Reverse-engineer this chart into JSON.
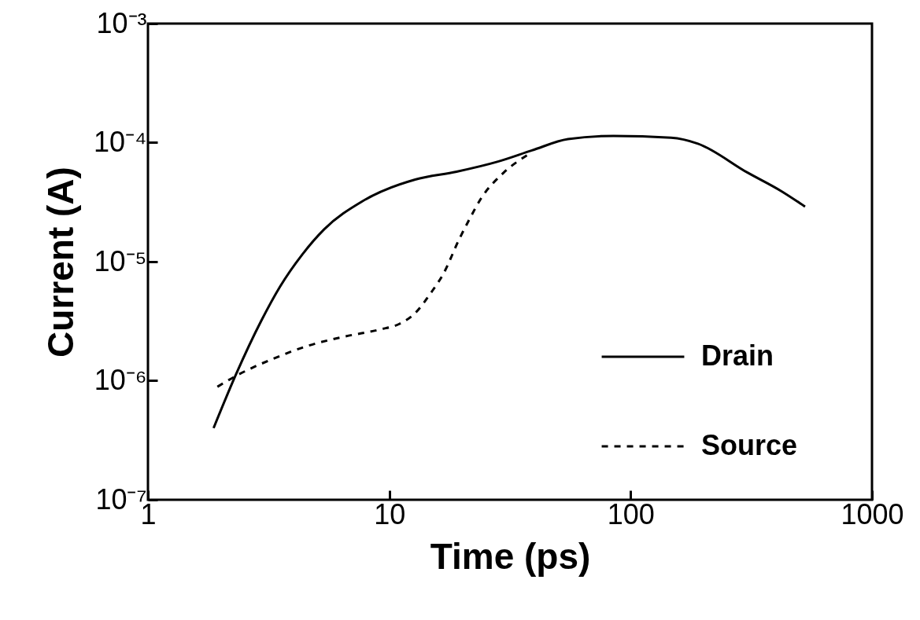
{
  "chart_data": {
    "type": "line",
    "xlabel": "Time (ps)",
    "ylabel": "Current (A)",
    "log": "xy",
    "grid": false,
    "legend": "bottom right",
    "marker": "none",
    "xlim": [
      1,
      1000
    ],
    "xticks": [
      1,
      10,
      100,
      1000
    ],
    "ylim": [
      1e-07,
      0.001
    ],
    "yticks": [
      {
        "value": 1e-07,
        "label": "10⁻⁷"
      },
      {
        "value": 1e-06,
        "label": "10⁻⁶"
      },
      {
        "value": 1e-05,
        "label": "10⁻⁵"
      },
      {
        "value": 0.0001,
        "label": "10⁻⁴"
      },
      {
        "value": 0.001,
        "label": "10⁻³"
      }
    ],
    "series": [
      {
        "name": "Drain",
        "color": "#000000",
        "line_style": "solid",
        "x": [
          1.87,
          2.32,
          2.95,
          3.53,
          4.36,
          5.37,
          7.7,
          12.8,
          19,
          28,
          39,
          55,
          85,
          147,
          190,
          305,
          422,
          528
        ],
        "values": [
          4e-07,
          1.14e-06,
          3.2e-06,
          6.2e-06,
          1.15e-05,
          1.87e-05,
          3.2e-05,
          4.9e-05,
          5.7e-05,
          6.9e-05,
          8.6e-05,
          0.000107,
          0.000114,
          0.00011,
          9.8e-05,
          5.6e-05,
          3.9e-05,
          2.9e-05
        ]
      },
      {
        "name": "Source",
        "color": "#000000",
        "line_style": "dashed",
        "x": [
          1.94,
          2.32,
          3.33,
          4.62,
          6.6,
          9.2,
          11,
          12.8,
          14.9,
          16.8,
          19.5,
          21.4,
          24,
          29.8,
          37.9
        ],
        "values": [
          8.9e-07,
          1.1e-06,
          1.54e-06,
          1.97e-06,
          2.36e-06,
          2.7e-06,
          3e-06,
          3.7e-06,
          5.5e-06,
          8e-06,
          1.55e-05,
          2.24e-05,
          3.4e-05,
          5.6e-05,
          8e-05
        ]
      }
    ]
  }
}
